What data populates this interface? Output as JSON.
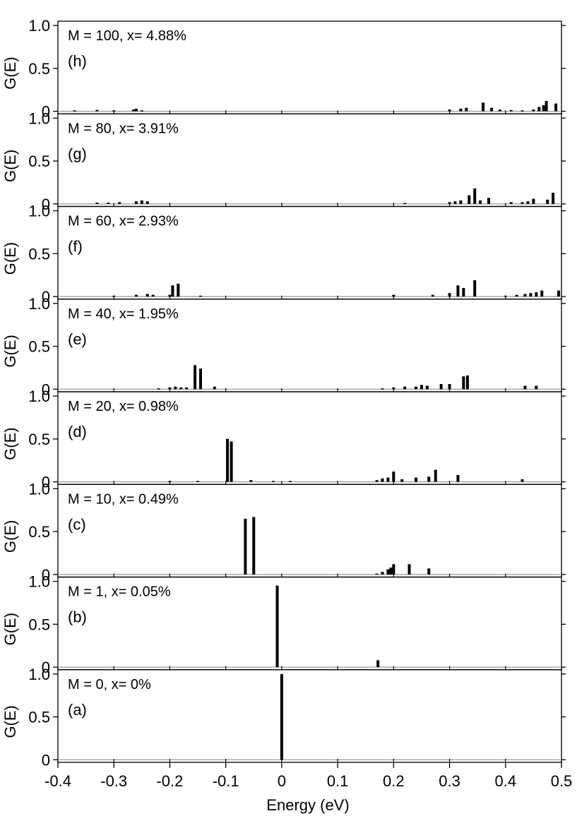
{
  "figure": {
    "xlabel": "Energy (eV)",
    "x_tick_labels": [
      "-0.4",
      "-0.3",
      "-0.2",
      "-0.1",
      "0",
      "0.1",
      "0.2",
      "0.3",
      "0.4",
      "0.5"
    ],
    "colors": {
      "bars": "#000000",
      "faint_bars": "#9a9a9a",
      "axes": "#000000",
      "background": "#ffffff"
    }
  },
  "chart_data": [
    {
      "type": "bar",
      "label": "(h)",
      "annotation": "M = 100, x= 4.88%",
      "ylabel": "G(E)",
      "y_tick_labels": [
        "0",
        "0.5",
        "1.0"
      ],
      "xlim": [
        -0.4,
        0.5
      ],
      "ylim": [
        -0.03,
        1.05
      ],
      "bars": [
        {
          "x": -0.37,
          "y": 0.01
        },
        {
          "x": -0.33,
          "y": 0.015
        },
        {
          "x": -0.3,
          "y": 0.01
        },
        {
          "x": -0.265,
          "y": 0.02
        },
        {
          "x": -0.26,
          "y": 0.03
        },
        {
          "x": -0.25,
          "y": 0.01
        },
        {
          "x": 0.3,
          "y": 0.02
        },
        {
          "x": 0.32,
          "y": 0.03
        },
        {
          "x": 0.33,
          "y": 0.04
        },
        {
          "x": 0.36,
          "y": 0.1
        },
        {
          "x": 0.375,
          "y": 0.04
        },
        {
          "x": 0.39,
          "y": 0.02
        },
        {
          "x": 0.41,
          "y": 0.015
        },
        {
          "x": 0.43,
          "y": 0.01
        },
        {
          "x": 0.45,
          "y": 0.02
        },
        {
          "x": 0.46,
          "y": 0.05
        },
        {
          "x": 0.468,
          "y": 0.07
        },
        {
          "x": 0.473,
          "y": 0.12
        },
        {
          "x": 0.49,
          "y": 0.09
        }
      ]
    },
    {
      "type": "bar",
      "label": "(g)",
      "annotation": "M = 80, x= 3.91%",
      "ylabel": "G(E)",
      "y_tick_labels": [
        "0",
        "0.5",
        "1.0"
      ],
      "xlim": [
        -0.4,
        0.5
      ],
      "ylim": [
        -0.03,
        1.05
      ],
      "bars": [
        {
          "x": -0.33,
          "y": 0.015
        },
        {
          "x": -0.31,
          "y": 0.015
        },
        {
          "x": -0.29,
          "y": 0.02
        },
        {
          "x": -0.26,
          "y": 0.03
        },
        {
          "x": -0.25,
          "y": 0.04
        },
        {
          "x": -0.24,
          "y": 0.03
        },
        {
          "x": 0.22,
          "y": 0.01
        },
        {
          "x": 0.3,
          "y": 0.02
        },
        {
          "x": 0.31,
          "y": 0.03
        },
        {
          "x": 0.32,
          "y": 0.04
        },
        {
          "x": 0.335,
          "y": 0.1
        },
        {
          "x": 0.345,
          "y": 0.18
        },
        {
          "x": 0.355,
          "y": 0.04
        },
        {
          "x": 0.37,
          "y": 0.07
        },
        {
          "x": 0.41,
          "y": 0.02
        },
        {
          "x": 0.43,
          "y": 0.02
        },
        {
          "x": 0.44,
          "y": 0.03
        },
        {
          "x": 0.45,
          "y": 0.06
        },
        {
          "x": 0.475,
          "y": 0.05
        },
        {
          "x": 0.485,
          "y": 0.13
        }
      ]
    },
    {
      "type": "bar",
      "label": "(f)",
      "annotation": "M = 60, x= 2.93%",
      "ylabel": "G(E)",
      "y_tick_labels": [
        "0",
        "0.5",
        "1.0"
      ],
      "xlim": [
        -0.4,
        0.5
      ],
      "ylim": [
        -0.03,
        1.05
      ],
      "bars": [
        {
          "x": -0.3,
          "y": 0.01
        },
        {
          "x": -0.26,
          "y": 0.02
        },
        {
          "x": -0.24,
          "y": 0.03
        },
        {
          "x": -0.23,
          "y": 0.02
        },
        {
          "x": -0.2,
          "y": 0.02
        },
        {
          "x": -0.195,
          "y": 0.13
        },
        {
          "x": -0.185,
          "y": 0.15
        },
        {
          "x": -0.145,
          "y": 0.01
        },
        {
          "x": 0.2,
          "y": 0.02
        },
        {
          "x": 0.27,
          "y": 0.02
        },
        {
          "x": 0.3,
          "y": 0.04
        },
        {
          "x": 0.315,
          "y": 0.13
        },
        {
          "x": 0.325,
          "y": 0.1
        },
        {
          "x": 0.345,
          "y": 0.19
        },
        {
          "x": 0.4,
          "y": 0.01
        },
        {
          "x": 0.42,
          "y": 0.02
        },
        {
          "x": 0.435,
          "y": 0.03
        },
        {
          "x": 0.445,
          "y": 0.04
        },
        {
          "x": 0.455,
          "y": 0.05
        },
        {
          "x": 0.465,
          "y": 0.07
        },
        {
          "x": 0.495,
          "y": 0.07
        }
      ]
    },
    {
      "type": "bar",
      "label": "(e)",
      "annotation": "M = 40, x= 1.95%",
      "ylabel": "G(E)",
      "y_tick_labels": [
        "0",
        "0.5",
        "1.0"
      ],
      "xlim": [
        -0.4,
        0.5
      ],
      "ylim": [
        -0.03,
        1.05
      ],
      "bars": [
        {
          "x": -0.22,
          "y": 0.01
        },
        {
          "x": -0.2,
          "y": 0.02
        },
        {
          "x": -0.19,
          "y": 0.03
        },
        {
          "x": -0.18,
          "y": 0.02
        },
        {
          "x": -0.17,
          "y": 0.02
        },
        {
          "x": -0.155,
          "y": 0.28
        },
        {
          "x": -0.145,
          "y": 0.24
        },
        {
          "x": -0.12,
          "y": 0.03
        },
        {
          "x": 0.18,
          "y": 0.01
        },
        {
          "x": 0.2,
          "y": 0.02
        },
        {
          "x": 0.22,
          "y": 0.03
        },
        {
          "x": 0.24,
          "y": 0.03
        },
        {
          "x": 0.25,
          "y": 0.05
        },
        {
          "x": 0.26,
          "y": 0.04
        },
        {
          "x": 0.285,
          "y": 0.06
        },
        {
          "x": 0.3,
          "y": 0.06
        },
        {
          "x": 0.325,
          "y": 0.15
        },
        {
          "x": 0.332,
          "y": 0.16
        },
        {
          "x": 0.435,
          "y": 0.04
        },
        {
          "x": 0.455,
          "y": 0.04
        }
      ]
    },
    {
      "type": "bar",
      "label": "(d)",
      "annotation": "M = 20, x= 0.98%",
      "ylabel": "G(E)",
      "y_tick_labels": [
        "0",
        "0.5",
        "1.0"
      ],
      "xlim": [
        -0.4,
        0.5
      ],
      "ylim": [
        -0.03,
        1.05
      ],
      "bars": [
        {
          "x": -0.2,
          "y": 0.01
        },
        {
          "x": -0.15,
          "y": 0.01
        },
        {
          "x": -0.097,
          "y": 0.5
        },
        {
          "x": -0.09,
          "y": 0.47
        },
        {
          "x": -0.055,
          "y": 0.02
        },
        {
          "x": -0.015,
          "y": 0.01
        },
        {
          "x": 0.015,
          "y": 0.01
        },
        {
          "x": 0.17,
          "y": 0.02
        },
        {
          "x": 0.18,
          "y": 0.04
        },
        {
          "x": 0.19,
          "y": 0.05
        },
        {
          "x": 0.2,
          "y": 0.12
        },
        {
          "x": 0.215,
          "y": 0.03
        },
        {
          "x": 0.24,
          "y": 0.05
        },
        {
          "x": 0.263,
          "y": 0.06
        },
        {
          "x": 0.275,
          "y": 0.14
        },
        {
          "x": 0.315,
          "y": 0.08
        },
        {
          "x": 0.43,
          "y": 0.03
        }
      ]
    },
    {
      "type": "bar",
      "label": "(c)",
      "annotation": "M = 10, x= 0.49%",
      "ylabel": "G(E)",
      "y_tick_labels": [
        "0",
        "0.5",
        "1.0"
      ],
      "xlim": [
        -0.4,
        0.5
      ],
      "ylim": [
        -0.03,
        1.05
      ],
      "bars": [
        {
          "x": -0.065,
          "y": 0.65
        },
        {
          "x": -0.05,
          "y": 0.67
        },
        {
          "x": 0.17,
          "y": 0.01
        },
        {
          "x": 0.18,
          "y": 0.03
        },
        {
          "x": 0.19,
          "y": 0.06
        },
        {
          "x": 0.195,
          "y": 0.08
        },
        {
          "x": 0.2,
          "y": 0.12
        },
        {
          "x": 0.228,
          "y": 0.12
        },
        {
          "x": 0.263,
          "y": 0.07
        }
      ]
    },
    {
      "type": "bar",
      "label": "(b)",
      "annotation": "M = 1, x= 0.05%",
      "ylabel": "G(E)",
      "y_tick_labels": [
        "0",
        "0.5",
        "1.0"
      ],
      "xlim": [
        -0.4,
        0.5
      ],
      "ylim": [
        -0.03,
        1.05
      ],
      "bars": [
        {
          "x": -0.008,
          "y": 0.95
        },
        {
          "x": 0.172,
          "y": 0.08
        }
      ]
    },
    {
      "type": "bar",
      "label": "(a)",
      "annotation": "M = 0, x= 0%",
      "ylabel": "G(E)",
      "y_tick_labels": [
        "0",
        "0.5",
        "1.0"
      ],
      "xlim": [
        -0.4,
        0.5
      ],
      "ylim": [
        -0.03,
        1.05
      ],
      "bars": [
        {
          "x": 0.0,
          "y": 1.0
        }
      ]
    }
  ]
}
